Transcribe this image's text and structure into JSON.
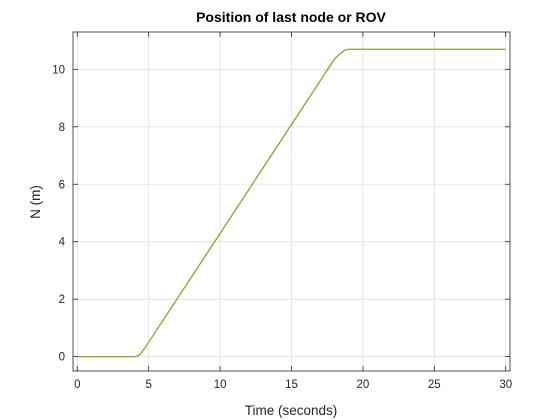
{
  "chart_data": {
    "type": "line",
    "title": "Position of last node or ROV",
    "xlabel": "Time (seconds)",
    "ylabel": "N (m)",
    "xlim": [
      -0.3,
      30.3
    ],
    "ylim": [
      -0.5,
      11.3
    ],
    "xticks": [
      0,
      5,
      10,
      15,
      20,
      25,
      30
    ],
    "yticks": [
      0,
      2,
      4,
      6,
      8,
      10
    ],
    "grid": true,
    "series": [
      {
        "color": "#77ac30",
        "x": [
          0,
          4.0,
          4.3,
          4.5,
          4.8,
          18.0,
          18.4,
          18.7,
          19.0,
          30
        ],
        "y": [
          0,
          0,
          0.04,
          0.14,
          0.35,
          10.35,
          10.55,
          10.66,
          10.7,
          10.7
        ]
      }
    ]
  }
}
